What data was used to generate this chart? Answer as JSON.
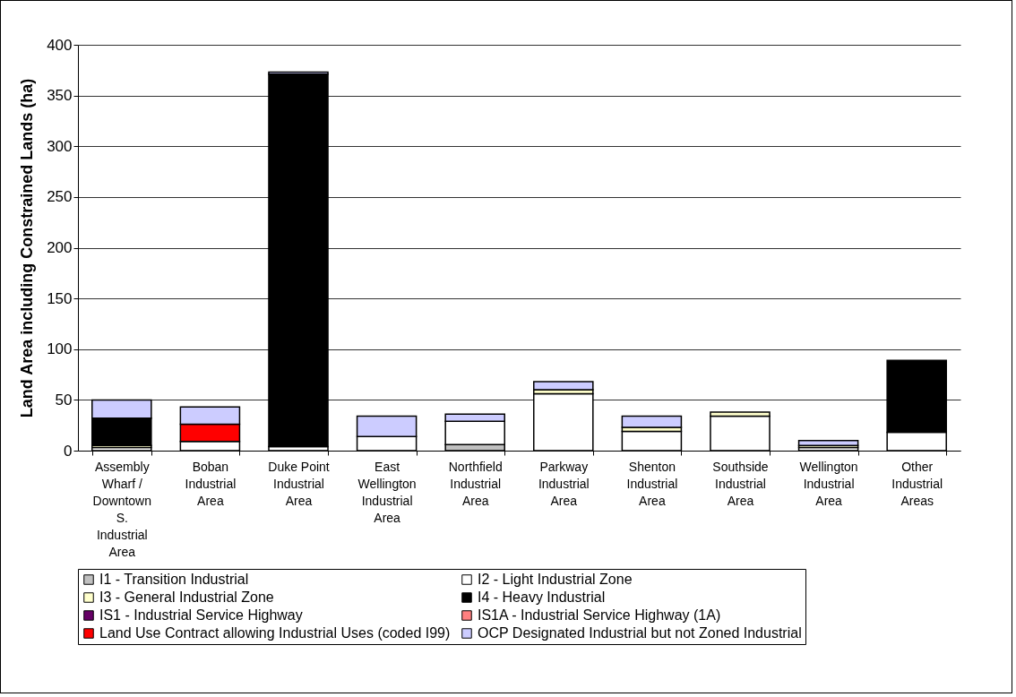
{
  "chart_data": {
    "type": "bar",
    "stacked": true,
    "ylabel": "Land Area including Constrained Lands (ha)",
    "categories": [
      "Assembly Wharf / Downtown S. Industrial Area",
      "Boban Industrial Area",
      "Duke Point Industrial Area",
      "East Wellington Industrial Area",
      "Northfield Industrial Area",
      "Parkway Industrial Area",
      "Shenton Industrial Area",
      "Southside Industrial Area",
      "Wellington Industrial Area",
      "Other Industrial Areas"
    ],
    "series": [
      {
        "name": "I1 - Transition Industrial",
        "color": "#c0c0c0",
        "values": [
          null,
          null,
          null,
          null,
          6,
          null,
          null,
          null,
          null,
          null
        ]
      },
      {
        "name": "I2 - Light Industrial Zone",
        "color": "#ffffff",
        "values": [
          3,
          9,
          4,
          14,
          23,
          56,
          19,
          34,
          3,
          18
        ]
      },
      {
        "name": "I3 - General Industrial Zone",
        "color": "#ffffcc",
        "values": [
          2,
          null,
          null,
          null,
          null,
          4,
          4,
          4,
          2,
          null
        ]
      },
      {
        "name": "I4 - Heavy Industrial",
        "color": "#000000",
        "values": [
          27,
          null,
          367,
          null,
          null,
          null,
          null,
          null,
          null,
          71
        ]
      },
      {
        "name": "IS1 - Industrial Service Highway",
        "color": "#660066",
        "values": [
          null,
          null,
          null,
          null,
          null,
          null,
          null,
          null,
          null,
          null
        ]
      },
      {
        "name": "IS1A - Industrial Service Highway (1A)",
        "color": "#ff8080",
        "values": [
          null,
          null,
          null,
          null,
          null,
          null,
          null,
          null,
          null,
          null
        ]
      },
      {
        "name": "Land Use Contract allowing Industrial Uses (coded I99)",
        "color": "#ff0000",
        "values": [
          null,
          17,
          null,
          null,
          null,
          null,
          null,
          null,
          null,
          null
        ]
      },
      {
        "name": "OCP Designated Industrial but not Zoned Industrial",
        "color": "#ccccff",
        "values": [
          18,
          17,
          2,
          20,
          7,
          8,
          11,
          null,
          5,
          null
        ]
      }
    ],
    "ylim": [
      0,
      400
    ],
    "yticks": [
      0,
      50,
      100,
      150,
      200,
      250,
      300,
      350,
      400
    ],
    "grid": "y",
    "legend": "bottom"
  }
}
